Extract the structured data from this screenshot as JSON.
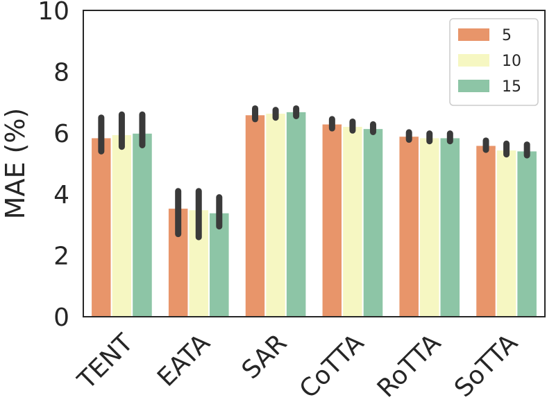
{
  "chart_data": {
    "type": "bar",
    "categories": [
      "TENT",
      "EATA",
      "SAR",
      "CoTTA",
      "RoTTA",
      "SoTTA"
    ],
    "series": [
      {
        "name": "5",
        "color": "#e8956a",
        "values": [
          5.85,
          3.55,
          6.6,
          6.3,
          5.9,
          5.6
        ],
        "err_low": [
          5.4,
          2.7,
          6.45,
          6.15,
          5.78,
          5.45
        ],
        "err_high": [
          6.5,
          4.1,
          6.8,
          6.45,
          6.02,
          5.75
        ]
      },
      {
        "name": "10",
        "color": "#f6f7c2",
        "values": [
          5.95,
          3.5,
          6.65,
          6.22,
          5.85,
          5.45
        ],
        "err_low": [
          5.55,
          2.6,
          6.5,
          6.08,
          5.73,
          5.3
        ],
        "err_high": [
          6.6,
          4.1,
          6.75,
          6.37,
          5.98,
          5.65
        ]
      },
      {
        "name": "15",
        "color": "#8dc5a6",
        "values": [
          6.0,
          3.4,
          6.7,
          6.15,
          5.85,
          5.42
        ],
        "err_low": [
          5.6,
          2.95,
          6.55,
          6.03,
          5.73,
          5.27
        ],
        "err_high": [
          6.6,
          3.9,
          6.8,
          6.28,
          5.98,
          5.62
        ]
      }
    ],
    "title": "",
    "xlabel": "",
    "ylabel": "MAE (%)",
    "ylim": [
      0,
      10
    ],
    "yticks": [
      "0",
      "2",
      "4",
      "6",
      "8",
      "10"
    ],
    "grid": false,
    "legend": "top-right",
    "error_color": "#3a3a3a"
  }
}
